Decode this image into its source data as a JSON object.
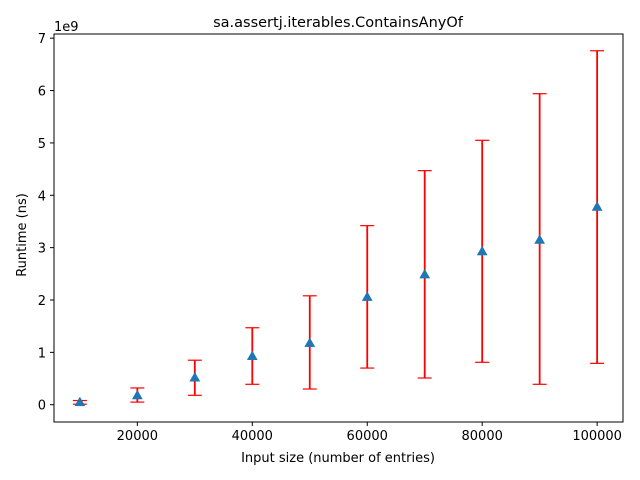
{
  "chart_data": {
    "type": "scatter",
    "title": "sa.assertj.iterables.ContainsAnyOf",
    "xlabel": "Input size (number of entries)",
    "ylabel": "Runtime (ns)",
    "y_offset_label": "1e9",
    "xlim": [
      5500,
      104500
    ],
    "ylim": [
      -0.33,
      7.08
    ],
    "xticks": [
      20000,
      40000,
      60000,
      80000,
      100000
    ],
    "yticks": [
      0,
      1,
      2,
      3,
      4,
      5,
      6,
      7
    ],
    "grid": false,
    "marker_color": "#1f77b4",
    "errorbar_color": "#ff0000",
    "series": [
      {
        "x": [
          10000,
          20000,
          30000,
          40000,
          50000,
          60000,
          70000,
          80000,
          90000,
          100000
        ],
        "y": [
          0.05,
          0.18,
          0.52,
          0.93,
          1.18,
          2.06,
          2.49,
          2.93,
          3.15,
          3.78
        ],
        "y_err_low": [
          0.01,
          0.05,
          0.18,
          0.39,
          0.3,
          0.7,
          0.51,
          0.81,
          0.39,
          0.79
        ],
        "y_err_high": [
          0.08,
          0.32,
          0.85,
          1.47,
          2.08,
          3.42,
          4.47,
          5.05,
          5.94,
          6.76
        ]
      }
    ]
  }
}
